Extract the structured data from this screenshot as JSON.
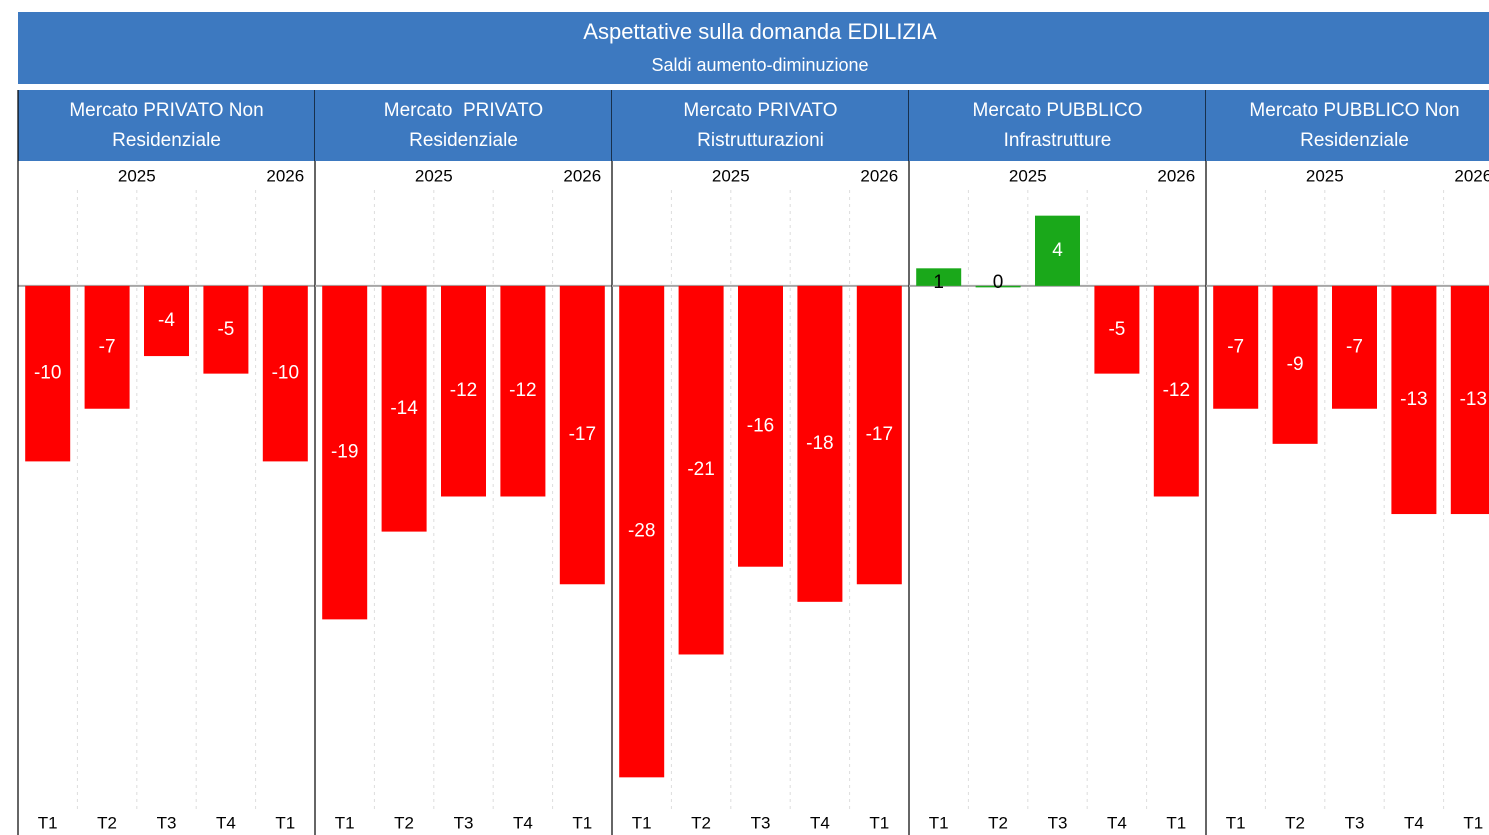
{
  "header": {
    "title": "Aspettative sulla domanda EDILIZIA",
    "subtitle": "Saldi aumento-diminuzione"
  },
  "years": [
    "2025",
    "2026"
  ],
  "chart_data": [
    {
      "type": "bar",
      "title": [
        "Mercato PRIVATO Non",
        "Residenziale"
      ],
      "categories": [
        "T1",
        "T2",
        "T3",
        "T4",
        "T1"
      ],
      "values": [
        -10,
        -7,
        -4,
        -5,
        -10
      ],
      "ylim": [
        -31,
        7
      ],
      "color_positive": "#1aa81a",
      "color_negative": "#ff0000"
    },
    {
      "type": "bar",
      "title": [
        "Mercato  PRIVATO",
        "Residenziale"
      ],
      "categories": [
        "T1",
        "T2",
        "T3",
        "T4",
        "T1"
      ],
      "values": [
        -19,
        -14,
        -12,
        -12,
        -17
      ],
      "ylim": [
        -31,
        7
      ],
      "color_positive": "#1aa81a",
      "color_negative": "#ff0000"
    },
    {
      "type": "bar",
      "title": [
        "Mercato PRIVATO",
        "Ristrutturazioni"
      ],
      "categories": [
        "T1",
        "T2",
        "T3",
        "T4",
        "T1"
      ],
      "values": [
        -28,
        -21,
        -16,
        -18,
        -17
      ],
      "ylim": [
        -31,
        7
      ],
      "color_positive": "#1aa81a",
      "color_negative": "#ff0000"
    },
    {
      "type": "bar",
      "title": [
        "Mercato PUBBLICO",
        "Infrastrutture"
      ],
      "categories": [
        "T1",
        "T2",
        "T3",
        "T4",
        "T1"
      ],
      "values": [
        1,
        0,
        4,
        -5,
        -12
      ],
      "ylim": [
        -31,
        7
      ],
      "color_positive": "#1aa81a",
      "color_negative": "#ff0000"
    },
    {
      "type": "bar",
      "title": [
        "Mercato PUBBLICO Non",
        "Residenziale"
      ],
      "categories": [
        "T1",
        "T2",
        "T3",
        "T4",
        "T1"
      ],
      "values": [
        -7,
        -9,
        -7,
        -13,
        -13
      ],
      "ylim": [
        -31,
        7
      ],
      "color_positive": "#1aa81a",
      "color_negative": "#ff0000"
    }
  ]
}
